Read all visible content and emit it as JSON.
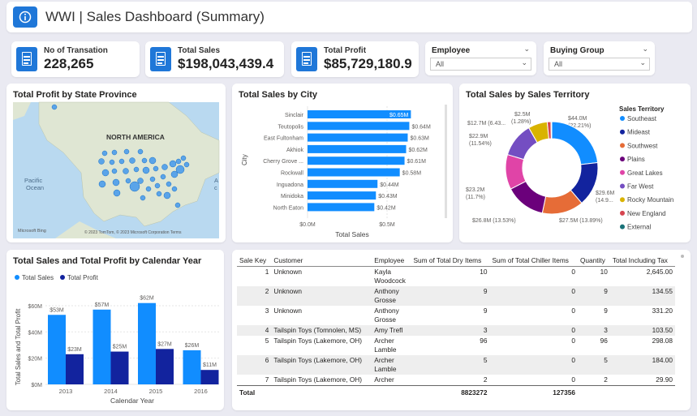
{
  "header": {
    "title": "WWI | Sales Dashboard (Summary)",
    "info_icon": "info-icon"
  },
  "kpis": [
    {
      "label": "No of Transation",
      "value": "228,265"
    },
    {
      "label": "Total Sales",
      "value": "$198,043,439.4"
    },
    {
      "label": "Total Profit",
      "value": "$85,729,180.9"
    }
  ],
  "slicers": [
    {
      "label": "Employee",
      "value": "All"
    },
    {
      "label": "Buying Group",
      "value": "All"
    }
  ],
  "map": {
    "title": "Total Profit by State Province",
    "labels": {
      "continent": "NORTH AMERICA",
      "ocean_pacific": "Pacific",
      "ocean_word": "Ocean",
      "ocean_atlantic_fragment": "A",
      "ocean_atlantic_fragment2": "c"
    },
    "attribution": "© 2023 TomTom, © 2023 Microsoft Corporation  Terms",
    "logo": "Microsoft Bing"
  },
  "city_chart": {
    "title": "Total Sales by City",
    "xlabel": "Total Sales",
    "ylabel": "City",
    "x_ticks": [
      "$0.0M",
      "$0.5M"
    ],
    "categories": [
      "Sinclair",
      "Teutopolis",
      "East Fultonham",
      "Akhiok",
      "Cherry Grove ...",
      "Rockwall",
      "Inguadona",
      "Minidoka",
      "North Eaton"
    ],
    "values": [
      0.65,
      0.64,
      0.63,
      0.62,
      0.61,
      0.58,
      0.44,
      0.43,
      0.42
    ],
    "labels": [
      "$0.65M",
      "$0.64M",
      "$0.63M",
      "$0.62M",
      "$0.61M",
      "$0.58M",
      "$0.44M",
      "$0.43M",
      "$0.42M"
    ],
    "color": "#118dff"
  },
  "territory_chart": {
    "title": "Total Sales by Sales Territory",
    "legend_title": "Sales Territory",
    "slices": [
      {
        "name": "Southeast",
        "value": 44.0,
        "color": "#118dff"
      },
      {
        "name": "Mideast",
        "value": 29.6,
        "color": "#12239e"
      },
      {
        "name": "Southwest",
        "value": 27.5,
        "color": "#e66c37"
      },
      {
        "name": "Plains",
        "value": 26.8,
        "color": "#6b007b"
      },
      {
        "name": "Great Lakes",
        "value": 23.2,
        "color": "#e044a7"
      },
      {
        "name": "Far West",
        "value": 22.9,
        "color": "#744ec2"
      },
      {
        "name": "Rocky Mountain",
        "value": 12.7,
        "color": "#d9b300"
      },
      {
        "name": "New England",
        "value": 2.5,
        "color": "#d64550"
      },
      {
        "name": "External",
        "value": 0.5,
        "color": "#197278"
      }
    ],
    "labels": {
      "southeast_a": "$44.0M",
      "southeast_b": "(22.21%)",
      "mideast_a": "$29.6M",
      "mideast_b": "(14.9...",
      "southwest": "$27.5M (13.89%)",
      "plains": "$26.8M (13.53%)",
      "greatlakes_a": "$23.2M",
      "greatlakes_b": "(11.7%)",
      "farwest_a": "$22.9M",
      "farwest_b": "(11.54%)",
      "rocky": "$12.7M (6.43...",
      "newengland_a": "$2.5M",
      "newengland_b": "(1.28%)"
    }
  },
  "year_chart": {
    "title": "Total Sales and Total Profit by Calendar Year",
    "type": "bar",
    "legend": [
      "Total Sales",
      "Total Profit"
    ],
    "xlabel": "Calendar Year",
    "ylabel": "Total Sales and Total Profit",
    "categories": [
      "2013",
      "2014",
      "2015",
      "2016"
    ],
    "y_ticks": [
      "$0M",
      "$20M",
      "$40M",
      "$60M"
    ],
    "series": [
      {
        "name": "Total Sales",
        "values": [
          53,
          57,
          62,
          26
        ],
        "labels": [
          "$53M",
          "$57M",
          "$62M",
          "$26M"
        ],
        "color": "#118dff"
      },
      {
        "name": "Total Profit",
        "values": [
          23,
          25,
          27,
          11
        ],
        "labels": [
          "$23M",
          "$25M",
          "$27M",
          "$11M"
        ],
        "color": "#12239e"
      }
    ],
    "ylim": [
      0,
      70
    ]
  },
  "table": {
    "columns": [
      "Sale Key",
      "Customer",
      "Employee",
      "Sum of Total Dry Items",
      "Sum of Total Chiller Items",
      "Quantity",
      "Total Including Tax"
    ],
    "rows": [
      {
        "key": "1",
        "customer": "Unknown",
        "employee": [
          "Kayla",
          "Woodcock"
        ],
        "dry": "10",
        "chiller": "0",
        "qty": "10",
        "tax": "2,645.00"
      },
      {
        "key": "2",
        "customer": "Unknown",
        "employee": [
          "Anthony",
          "Grosse"
        ],
        "dry": "9",
        "chiller": "0",
        "qty": "9",
        "tax": "134.55"
      },
      {
        "key": "3",
        "customer": "Unknown",
        "employee": [
          "Anthony",
          "Grosse"
        ],
        "dry": "9",
        "chiller": "0",
        "qty": "9",
        "tax": "331.20"
      },
      {
        "key": "4",
        "customer": "Tailspin Toys (Tomnolen, MS)",
        "employee": [
          "Amy Trefl",
          ""
        ],
        "dry": "3",
        "chiller": "0",
        "qty": "3",
        "tax": "103.50"
      },
      {
        "key": "5",
        "customer": "Tailspin Toys (Lakemore, OH)",
        "employee": [
          "Archer",
          "Lamble"
        ],
        "dry": "96",
        "chiller": "0",
        "qty": "96",
        "tax": "298.08"
      },
      {
        "key": "6",
        "customer": "Tailspin Toys (Lakemore, OH)",
        "employee": [
          "Archer",
          "Lamble"
        ],
        "dry": "5",
        "chiller": "0",
        "qty": "5",
        "tax": "184.00"
      },
      {
        "key": "7",
        "customer": "Tailspin Toys (Lakemore, OH)",
        "employee": [
          "Archer",
          ""
        ],
        "dry": "2",
        "chiller": "0",
        "qty": "2",
        "tax": "29.90"
      }
    ],
    "total": {
      "label": "Total",
      "dry": "8823272",
      "chiller": "127356"
    }
  }
}
